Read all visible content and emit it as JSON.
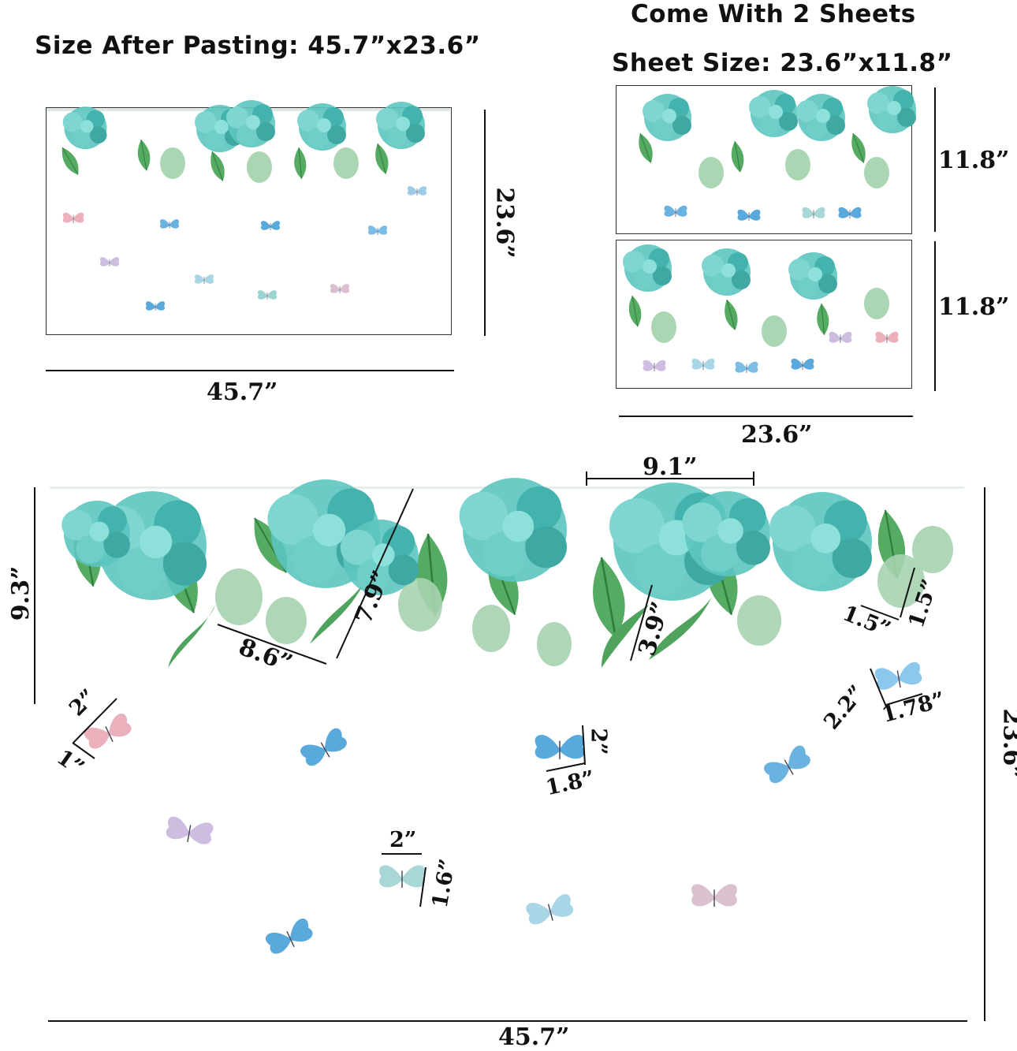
{
  "headings": {
    "size_after": "Size After Pasting: 45.7”x23.6”",
    "come_with": "Come With 2 Sheets",
    "sheet_size": "Sheet Size: 23.6”x11.8”"
  },
  "overview": {
    "width_label": "45.7”",
    "height_label": "23.6”"
  },
  "sheets": {
    "sheet_height_label": "11.8”",
    "sheet_width_label": "23.6”"
  },
  "detail": {
    "width_label": "45.7”",
    "height_label": "23.6”",
    "foliage_height_label": "9.3”",
    "flower_width_label": "9.1”",
    "leaf_a_width": "8.6”",
    "leaf_a_height": "7.9”",
    "leaf_b_height": "3.9”",
    "leaf_c_width": "1.5”",
    "leaf_c_height": "1.5”",
    "pink_butterfly_height": "2”",
    "pink_butterfly_width": "1”",
    "blue_butterfly_height": "2”",
    "blue_butterfly_width": "1.8”",
    "light_butterfly_height": "2.2”",
    "light_butterfly_width": "1.78”",
    "teal_butterfly_width": "2”",
    "teal_butterfly_height": "1.6”"
  },
  "colors": {
    "hydrangea": "#4fbfb8",
    "leaf": "#4aa05a",
    "butterfly_blue": "#5aa9dc",
    "butterfly_pink": "#e9a6b4",
    "butterfly_lilac": "#c9b8de"
  }
}
